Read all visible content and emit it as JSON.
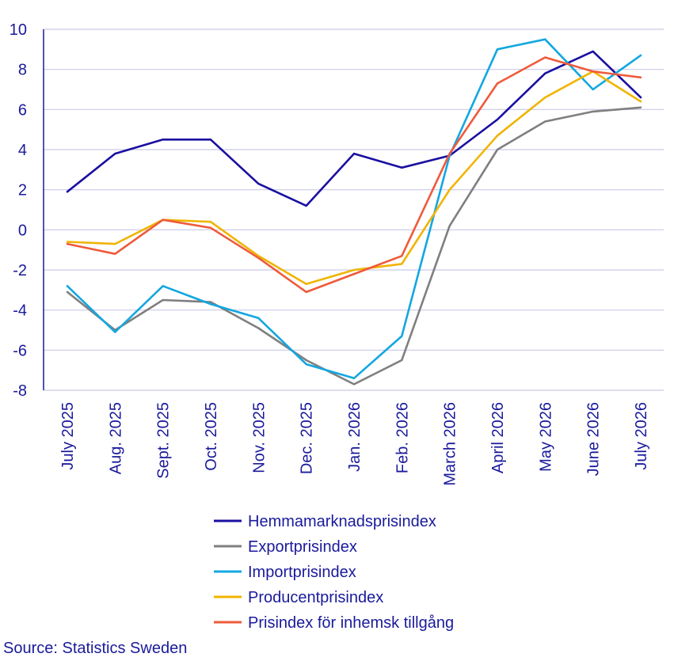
{
  "chart_data": {
    "type": "line",
    "title": "",
    "xlabel": "",
    "ylabel": "",
    "ylim": [
      -8,
      10
    ],
    "yticks": [
      -8,
      -6,
      -4,
      -2,
      0,
      2,
      4,
      6,
      8,
      10
    ],
    "grid": true,
    "legend_position": "bottom",
    "categories": [
      "July 2025",
      "Aug. 2025",
      "Sept. 2025",
      "Oct. 2025",
      "Nov. 2025",
      "Dec. 2025",
      "Jan. 2026",
      "Feb. 2026",
      "March 2026",
      "April 2026",
      "May 2026",
      "June 2026",
      "July 2026"
    ],
    "series": [
      {
        "name": "Hemmamarknadsprisindex",
        "color": "#1a0fa0",
        "values": [
          1.9,
          3.8,
          4.5,
          4.5,
          2.3,
          1.2,
          3.8,
          3.1,
          3.7,
          5.5,
          7.8,
          8.9,
          6.6
        ]
      },
      {
        "name": "Exportprisindex",
        "color": "#7f7f7f",
        "values": [
          -3.1,
          -5.0,
          -3.5,
          -3.6,
          -4.9,
          -6.5,
          -7.7,
          -6.5,
          0.2,
          4.0,
          5.4,
          5.9,
          6.1
        ]
      },
      {
        "name": "Importprisindex",
        "color": "#13a7e0",
        "values": [
          -2.8,
          -5.1,
          -2.8,
          -3.7,
          -4.4,
          -6.7,
          -7.4,
          -5.3,
          3.7,
          9.0,
          9.5,
          7.0,
          8.7
        ]
      },
      {
        "name": "Producentprisindex",
        "color": "#f0b400",
        "values": [
          -0.6,
          -0.7,
          0.5,
          0.4,
          -1.3,
          -2.7,
          -2.0,
          -1.7,
          2.0,
          4.7,
          6.6,
          7.9,
          6.4
        ]
      },
      {
        "name": "Prisindex för inhemsk tillgång",
        "color": "#ee5b3b",
        "values": [
          -0.7,
          -1.2,
          0.5,
          0.1,
          -1.4,
          -3.1,
          -2.2,
          -1.3,
          3.8,
          7.3,
          8.6,
          7.9,
          7.6
        ]
      }
    ],
    "source": "Source: Statistics Sweden"
  }
}
